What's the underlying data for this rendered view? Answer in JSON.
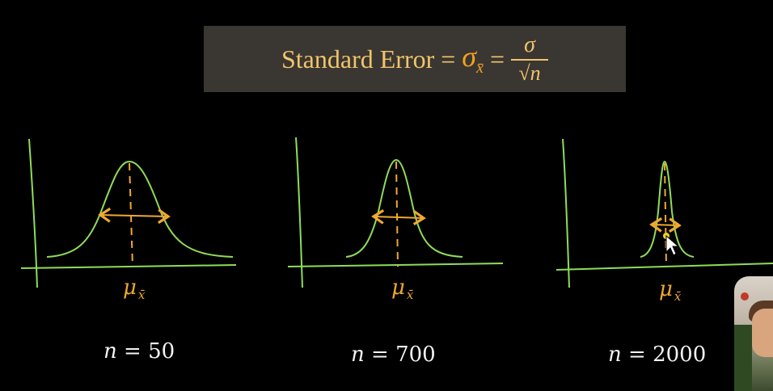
{
  "formula": {
    "lead": "Standard Error =",
    "sigma": "σ",
    "sigma_sub": "x̄",
    "equals": "=",
    "numerator": "σ",
    "radical": "√",
    "denominator_var": "n"
  },
  "panels": [
    {
      "mu_label": "μ",
      "mu_sub": "x̄",
      "n_var": "n",
      "n_text": " = 50"
    },
    {
      "mu_label": "μ",
      "mu_sub": "x̄",
      "n_var": "n",
      "n_text": " = 700"
    },
    {
      "mu_label": "μ",
      "mu_sub": "x̄",
      "n_var": "n",
      "n_text": " = 2000"
    }
  ],
  "colors": {
    "background": "#000000",
    "formula_box": "#3a3632",
    "formula_text": "#f1c56a",
    "curve": "#8fdc5a",
    "mean_line": "#f0a830",
    "spread_arrow": "#f0a830",
    "label": "#f4f4f4"
  }
}
